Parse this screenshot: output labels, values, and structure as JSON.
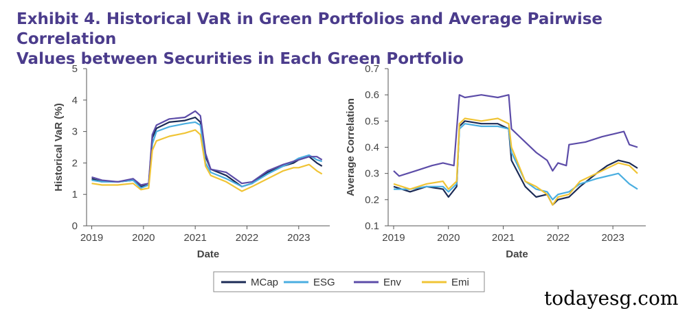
{
  "title_line1": "Exhibit 4. Historical VaR in Green Portfolios and Average Pairwise Correlation",
  "title_line2": "Values between Securities in Each Green Portfolio",
  "watermark": "todayesg.com",
  "legend": [
    {
      "name": "MCap",
      "color": "#1b2a55"
    },
    {
      "name": "ESG",
      "color": "#4aaee0"
    },
    {
      "name": "Env",
      "color": "#5c4ca8"
    },
    {
      "name": "Emi",
      "color": "#f0c435"
    }
  ],
  "chart_data": [
    {
      "type": "line",
      "xlabel": "Date",
      "ylabel": "Historical VaR (%)",
      "xlim": [
        2018.9,
        2023.6
      ],
      "ylim": [
        0,
        5
      ],
      "yticks": [
        "0",
        "1",
        "2",
        "3",
        "4",
        "5"
      ],
      "xticks": [
        "2019",
        "2020",
        "2021",
        "2022",
        "2023"
      ],
      "series": [
        {
          "name": "MCap",
          "color": "#1b2a55",
          "points": [
            [
              2019.0,
              1.5
            ],
            [
              2019.2,
              1.4
            ],
            [
              2019.5,
              1.4
            ],
            [
              2019.8,
              1.45
            ],
            [
              2019.95,
              1.25
            ],
            [
              2020.1,
              1.3
            ],
            [
              2020.17,
              2.8
            ],
            [
              2020.25,
              3.1
            ],
            [
              2020.5,
              3.3
            ],
            [
              2020.8,
              3.35
            ],
            [
              2021.0,
              3.45
            ],
            [
              2021.1,
              3.3
            ],
            [
              2021.2,
              2.2
            ],
            [
              2021.3,
              1.8
            ],
            [
              2021.6,
              1.6
            ],
            [
              2021.9,
              1.25
            ],
            [
              2022.1,
              1.35
            ],
            [
              2022.4,
              1.7
            ],
            [
              2022.7,
              1.9
            ],
            [
              2022.9,
              2.0
            ],
            [
              2023.0,
              2.1
            ],
            [
              2023.2,
              2.2
            ],
            [
              2023.35,
              2.0
            ],
            [
              2023.45,
              1.9
            ]
          ]
        },
        {
          "name": "ESG",
          "color": "#4aaee0",
          "points": [
            [
              2019.0,
              1.45
            ],
            [
              2019.2,
              1.4
            ],
            [
              2019.5,
              1.4
            ],
            [
              2019.8,
              1.45
            ],
            [
              2019.95,
              1.2
            ],
            [
              2020.1,
              1.3
            ],
            [
              2020.17,
              2.6
            ],
            [
              2020.25,
              3.0
            ],
            [
              2020.5,
              3.15
            ],
            [
              2020.8,
              3.25
            ],
            [
              2021.0,
              3.3
            ],
            [
              2021.1,
              3.2
            ],
            [
              2021.2,
              2.0
            ],
            [
              2021.3,
              1.7
            ],
            [
              2021.6,
              1.5
            ],
            [
              2021.9,
              1.25
            ],
            [
              2022.1,
              1.35
            ],
            [
              2022.4,
              1.65
            ],
            [
              2022.7,
              1.9
            ],
            [
              2022.9,
              2.05
            ],
            [
              2023.0,
              2.15
            ],
            [
              2023.2,
              2.25
            ],
            [
              2023.35,
              2.1
            ],
            [
              2023.45,
              2.05
            ]
          ]
        },
        {
          "name": "Env",
          "color": "#5c4ca8",
          "points": [
            [
              2019.0,
              1.55
            ],
            [
              2019.2,
              1.45
            ],
            [
              2019.5,
              1.4
            ],
            [
              2019.8,
              1.5
            ],
            [
              2019.95,
              1.3
            ],
            [
              2020.1,
              1.35
            ],
            [
              2020.17,
              2.9
            ],
            [
              2020.25,
              3.2
            ],
            [
              2020.5,
              3.4
            ],
            [
              2020.8,
              3.45
            ],
            [
              2021.0,
              3.65
            ],
            [
              2021.1,
              3.5
            ],
            [
              2021.2,
              2.3
            ],
            [
              2021.3,
              1.8
            ],
            [
              2021.6,
              1.7
            ],
            [
              2021.9,
              1.35
            ],
            [
              2022.1,
              1.4
            ],
            [
              2022.4,
              1.75
            ],
            [
              2022.7,
              1.95
            ],
            [
              2022.9,
              2.05
            ],
            [
              2023.0,
              2.1
            ],
            [
              2023.2,
              2.2
            ],
            [
              2023.35,
              2.2
            ],
            [
              2023.45,
              2.1
            ]
          ]
        },
        {
          "name": "Emi",
          "color": "#f0c435",
          "points": [
            [
              2019.0,
              1.35
            ],
            [
              2019.2,
              1.3
            ],
            [
              2019.5,
              1.3
            ],
            [
              2019.8,
              1.35
            ],
            [
              2019.95,
              1.15
            ],
            [
              2020.1,
              1.2
            ],
            [
              2020.17,
              2.4
            ],
            [
              2020.25,
              2.7
            ],
            [
              2020.5,
              2.85
            ],
            [
              2020.8,
              2.95
            ],
            [
              2021.0,
              3.05
            ],
            [
              2021.1,
              2.9
            ],
            [
              2021.2,
              1.9
            ],
            [
              2021.3,
              1.6
            ],
            [
              2021.6,
              1.4
            ],
            [
              2021.9,
              1.1
            ],
            [
              2022.1,
              1.25
            ],
            [
              2022.4,
              1.5
            ],
            [
              2022.7,
              1.75
            ],
            [
              2022.9,
              1.85
            ],
            [
              2023.0,
              1.85
            ],
            [
              2023.2,
              1.95
            ],
            [
              2023.35,
              1.75
            ],
            [
              2023.45,
              1.65
            ]
          ]
        }
      ]
    },
    {
      "type": "line",
      "xlabel": "Date",
      "ylabel": "Average Correlation",
      "xlim": [
        2018.9,
        2023.6
      ],
      "ylim": [
        0.1,
        0.7
      ],
      "yticks": [
        "0.1",
        "0.2",
        "0.3",
        "0.4",
        "0.5",
        "0.6",
        "0.7"
      ],
      "xticks": [
        "2019",
        "2020",
        "2021",
        "2022",
        "2023"
      ],
      "series": [
        {
          "name": "MCap",
          "color": "#1b2a55",
          "points": [
            [
              2019.0,
              0.25
            ],
            [
              2019.3,
              0.23
            ],
            [
              2019.6,
              0.25
            ],
            [
              2019.9,
              0.24
            ],
            [
              2020.0,
              0.21
            ],
            [
              2020.15,
              0.25
            ],
            [
              2020.2,
              0.48
            ],
            [
              2020.3,
              0.5
            ],
            [
              2020.6,
              0.49
            ],
            [
              2020.9,
              0.49
            ],
            [
              2021.1,
              0.47
            ],
            [
              2021.15,
              0.35
            ],
            [
              2021.4,
              0.25
            ],
            [
              2021.6,
              0.21
            ],
            [
              2021.8,
              0.22
            ],
            [
              2021.9,
              0.18
            ],
            [
              2022.0,
              0.2
            ],
            [
              2022.2,
              0.21
            ],
            [
              2022.4,
              0.25
            ],
            [
              2022.7,
              0.3
            ],
            [
              2022.9,
              0.33
            ],
            [
              2023.1,
              0.35
            ],
            [
              2023.3,
              0.34
            ],
            [
              2023.45,
              0.32
            ]
          ]
        },
        {
          "name": "ESG",
          "color": "#4aaee0",
          "points": [
            [
              2019.0,
              0.24
            ],
            [
              2019.3,
              0.24
            ],
            [
              2019.6,
              0.25
            ],
            [
              2019.9,
              0.25
            ],
            [
              2020.0,
              0.23
            ],
            [
              2020.15,
              0.26
            ],
            [
              2020.2,
              0.47
            ],
            [
              2020.3,
              0.49
            ],
            [
              2020.6,
              0.48
            ],
            [
              2020.9,
              0.48
            ],
            [
              2021.1,
              0.47
            ],
            [
              2021.15,
              0.38
            ],
            [
              2021.4,
              0.27
            ],
            [
              2021.6,
              0.24
            ],
            [
              2021.8,
              0.23
            ],
            [
              2021.9,
              0.2
            ],
            [
              2022.0,
              0.22
            ],
            [
              2022.2,
              0.23
            ],
            [
              2022.4,
              0.26
            ],
            [
              2022.7,
              0.28
            ],
            [
              2022.9,
              0.29
            ],
            [
              2023.1,
              0.3
            ],
            [
              2023.3,
              0.26
            ],
            [
              2023.45,
              0.24
            ]
          ]
        },
        {
          "name": "Env",
          "color": "#5c4ca8",
          "points": [
            [
              2019.0,
              0.31
            ],
            [
              2019.1,
              0.29
            ],
            [
              2019.4,
              0.31
            ],
            [
              2019.7,
              0.33
            ],
            [
              2019.9,
              0.34
            ],
            [
              2020.1,
              0.33
            ],
            [
              2020.2,
              0.6
            ],
            [
              2020.3,
              0.59
            ],
            [
              2020.6,
              0.6
            ],
            [
              2020.9,
              0.59
            ],
            [
              2021.1,
              0.6
            ],
            [
              2021.15,
              0.47
            ],
            [
              2021.4,
              0.42
            ],
            [
              2021.6,
              0.38
            ],
            [
              2021.8,
              0.35
            ],
            [
              2021.9,
              0.31
            ],
            [
              2022.0,
              0.34
            ],
            [
              2022.15,
              0.33
            ],
            [
              2022.2,
              0.41
            ],
            [
              2022.5,
              0.42
            ],
            [
              2022.8,
              0.44
            ],
            [
              2023.0,
              0.45
            ],
            [
              2023.2,
              0.46
            ],
            [
              2023.3,
              0.41
            ],
            [
              2023.45,
              0.4
            ]
          ]
        },
        {
          "name": "Emi",
          "color": "#f0c435",
          "points": [
            [
              2019.0,
              0.26
            ],
            [
              2019.3,
              0.24
            ],
            [
              2019.6,
              0.26
            ],
            [
              2019.9,
              0.27
            ],
            [
              2020.0,
              0.24
            ],
            [
              2020.15,
              0.27
            ],
            [
              2020.2,
              0.49
            ],
            [
              2020.3,
              0.51
            ],
            [
              2020.6,
              0.5
            ],
            [
              2020.9,
              0.51
            ],
            [
              2021.1,
              0.49
            ],
            [
              2021.15,
              0.4
            ],
            [
              2021.4,
              0.27
            ],
            [
              2021.6,
              0.25
            ],
            [
              2021.8,
              0.22
            ],
            [
              2021.9,
              0.18
            ],
            [
              2022.0,
              0.21
            ],
            [
              2022.2,
              0.22
            ],
            [
              2022.4,
              0.27
            ],
            [
              2022.7,
              0.3
            ],
            [
              2022.9,
              0.32
            ],
            [
              2023.1,
              0.34
            ],
            [
              2023.3,
              0.33
            ],
            [
              2023.45,
              0.3
            ]
          ]
        }
      ]
    }
  ]
}
